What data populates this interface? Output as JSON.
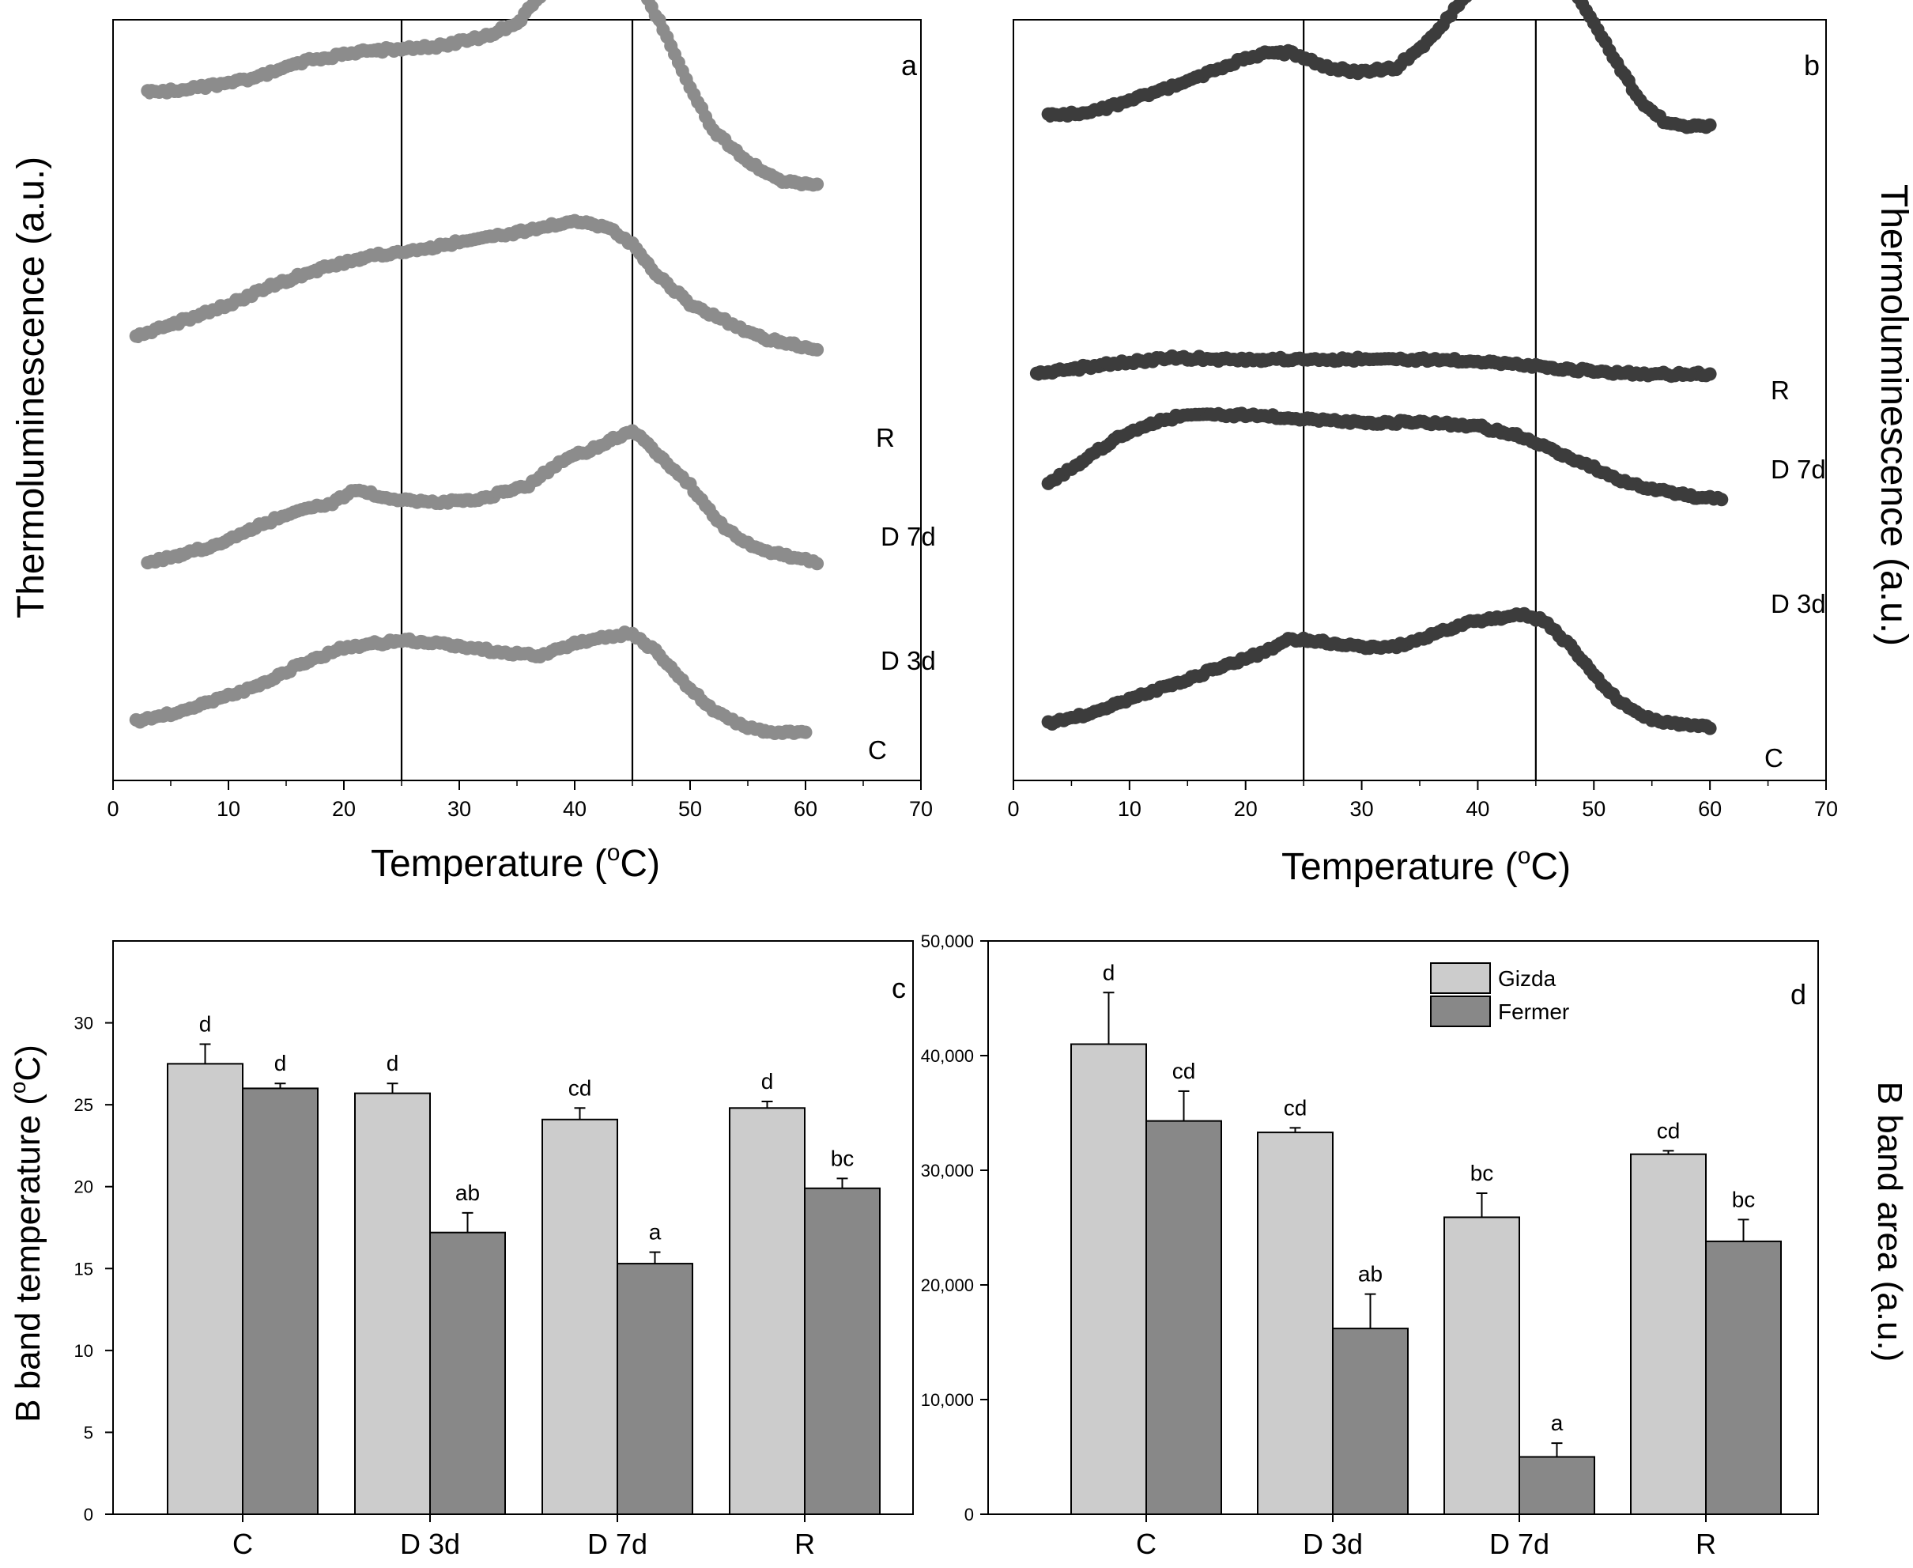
{
  "chart_data": [
    {
      "panel": "a",
      "type": "line",
      "ylabel": "Thermoluminescence (a.u.)",
      "xlabel_main": "Temperature (",
      "xlabel_deg": "o",
      "xlabel_end": "C)",
      "xlim": [
        0,
        70
      ],
      "x_ticks": [
        "0",
        "10",
        "20",
        "30",
        "40",
        "50",
        "60",
        "70"
      ],
      "color": "#8c8c8c",
      "vlines": [
        25,
        45
      ],
      "y_scale": [
        0,
        100
      ],
      "series": [
        {
          "name": "R",
          "points": [
            [
              3,
              62
            ],
            [
              7,
              63
            ],
            [
              12,
              65
            ],
            [
              17,
              69
            ],
            [
              22,
              71
            ],
            [
              25,
              71.5
            ],
            [
              28,
              72
            ],
            [
              32,
              74
            ],
            [
              35,
              77
            ],
            [
              38,
              86
            ],
            [
              40,
              96
            ],
            [
              42,
              97
            ],
            [
              44,
              93
            ],
            [
              46,
              84
            ],
            [
              48,
              74
            ],
            [
              50,
              63
            ],
            [
              52,
              54
            ],
            [
              55,
              47
            ],
            [
              58,
              43
            ],
            [
              61,
              42
            ]
          ]
        },
        {
          "name": "D 7d",
          "points": [
            [
              2,
              38
            ],
            [
              6,
              42
            ],
            [
              10,
              46
            ],
            [
              14,
              51
            ],
            [
              18,
              55
            ],
            [
              22,
              58
            ],
            [
              25,
              59
            ],
            [
              29,
              61
            ],
            [
              33,
              63
            ],
            [
              37,
              65
            ],
            [
              40,
              67
            ],
            [
              43,
              65
            ],
            [
              45,
              61
            ],
            [
              47,
              54
            ],
            [
              50,
              46
            ],
            [
              53,
              42
            ],
            [
              56,
              38
            ],
            [
              59,
              36
            ],
            [
              61,
              35
            ]
          ]
        },
        {
          "name": "D 3d",
          "points": [
            [
              3,
              22
            ],
            [
              6,
              24
            ],
            [
              9,
              26
            ],
            [
              12,
              30
            ],
            [
              16,
              34
            ],
            [
              19,
              36
            ],
            [
              21,
              39
            ],
            [
              24,
              37
            ],
            [
              28,
              36
            ],
            [
              32,
              37
            ],
            [
              36,
              40
            ],
            [
              39,
              46
            ],
            [
              42,
              49
            ],
            [
              45,
              53
            ],
            [
              47,
              48
            ],
            [
              50,
              40
            ],
            [
              53,
              30
            ],
            [
              56,
              25
            ],
            [
              59,
              23
            ],
            [
              61,
              22
            ]
          ]
        },
        {
          "name": "C",
          "points": [
            [
              2,
              6
            ],
            [
              5,
              8
            ],
            [
              8,
              11
            ],
            [
              12,
              15
            ],
            [
              16,
              21
            ],
            [
              20,
              26
            ],
            [
              25,
              28
            ],
            [
              29,
              27
            ],
            [
              33,
              25
            ],
            [
              37,
              24
            ],
            [
              40,
              27
            ],
            [
              43,
              29
            ],
            [
              45,
              30
            ],
            [
              47,
              25
            ],
            [
              49,
              18
            ],
            [
              52,
              9
            ],
            [
              55,
              4
            ],
            [
              58,
              3
            ],
            [
              60,
              3
            ]
          ]
        }
      ]
    },
    {
      "panel": "b",
      "type": "line",
      "ylabel": "Thermoluminescence (a.u.)",
      "xlabel_main": "Temperature (",
      "xlabel_deg": "o",
      "xlabel_end": "C)",
      "xlim": [
        0,
        70
      ],
      "x_ticks": [
        "0",
        "10",
        "20",
        "30",
        "40",
        "50",
        "60",
        "70"
      ],
      "color": "#3c3c3c",
      "vlines": [
        25,
        45
      ],
      "y_scale": [
        0,
        100
      ],
      "series": [
        {
          "name": "R",
          "points": [
            [
              3,
              55
            ],
            [
              7,
              56
            ],
            [
              11,
              59
            ],
            [
              15,
              62
            ],
            [
              19,
              66
            ],
            [
              22,
              68
            ],
            [
              24,
              68
            ],
            [
              27,
              65
            ],
            [
              30,
              64
            ],
            [
              33,
              65
            ],
            [
              36,
              71
            ],
            [
              39,
              80
            ],
            [
              42,
              87
            ],
            [
              44,
              90
            ],
            [
              46,
              89
            ],
            [
              48,
              82
            ],
            [
              50,
              74
            ],
            [
              52,
              66
            ],
            [
              54,
              58
            ],
            [
              56,
              54
            ],
            [
              58,
              53
            ],
            [
              60,
              53
            ]
          ]
        },
        {
          "name": "D 7d",
          "points": [
            [
              2,
              47
            ],
            [
              5,
              50
            ],
            [
              8,
              53
            ],
            [
              11,
              55
            ],
            [
              14,
              57
            ],
            [
              18,
              56
            ],
            [
              25,
              56
            ],
            [
              35,
              56
            ],
            [
              40,
              55
            ],
            [
              45,
              52
            ],
            [
              48,
              50
            ],
            [
              51,
              48
            ],
            [
              55,
              47
            ],
            [
              58,
              47
            ],
            [
              60,
              47
            ]
          ]
        },
        {
          "name": "D 3d",
          "points": [
            [
              3,
              30
            ],
            [
              6,
              36
            ],
            [
              9,
              42
            ],
            [
              12,
              46
            ],
            [
              15,
              48
            ],
            [
              20,
              48
            ],
            [
              25,
              47
            ],
            [
              30,
              46
            ],
            [
              35,
              46
            ],
            [
              40,
              45
            ],
            [
              44,
              42
            ],
            [
              47,
              38
            ],
            [
              50,
              34
            ],
            [
              53,
              30
            ],
            [
              56,
              28
            ],
            [
              59,
              26
            ],
            [
              61,
              26
            ]
          ]
        },
        {
          "name": "C",
          "points": [
            [
              3,
              3
            ],
            [
              6,
              5
            ],
            [
              9,
              8
            ],
            [
              12,
              11
            ],
            [
              15,
              14
            ],
            [
              18,
              17
            ],
            [
              21,
              20
            ],
            [
              24,
              24
            ],
            [
              27,
              23
            ],
            [
              30,
              22
            ],
            [
              33,
              22
            ],
            [
              36,
              25
            ],
            [
              39,
              28
            ],
            [
              42,
              29
            ],
            [
              44,
              30
            ],
            [
              46,
              28
            ],
            [
              48,
              22
            ],
            [
              50,
              15
            ],
            [
              52,
              9
            ],
            [
              54,
              5
            ],
            [
              56,
              3
            ],
            [
              58,
              3
            ],
            [
              60,
              2
            ]
          ]
        }
      ]
    },
    {
      "panel": "c",
      "type": "bar",
      "ylabel_main": "B band temperature (",
      "ylabel_deg": "o",
      "ylabel_end": "C)",
      "categories": [
        "C",
        "D 3d",
        "D 7d",
        "R"
      ],
      "ylim": [
        0,
        35
      ],
      "y_ticks": [
        "0",
        "5",
        "10",
        "15",
        "20",
        "25",
        "30"
      ],
      "y_tick_values": [
        0,
        5,
        10,
        15,
        20,
        25,
        30
      ],
      "series": [
        {
          "name": "Gizda",
          "color": "#cccccc",
          "values": [
            27.5,
            25.7,
            24.1,
            24.8
          ],
          "errors": [
            1.2,
            0.6,
            0.7,
            0.4
          ],
          "letters": [
            "d",
            "d",
            "cd",
            "d"
          ]
        },
        {
          "name": "Fermer",
          "color": "#888888",
          "values": [
            26.0,
            17.2,
            15.3,
            19.9
          ],
          "errors": [
            0.3,
            1.2,
            0.7,
            0.6
          ],
          "letters": [
            "d",
            "ab",
            "a",
            "bc"
          ]
        }
      ]
    },
    {
      "panel": "d",
      "type": "bar",
      "ylabel": "B band area (a.u.)",
      "categories": [
        "C",
        "D 3d",
        "D 7d",
        "R"
      ],
      "ylim": [
        0,
        50000
      ],
      "y_ticks": [
        "0",
        "10,000",
        "20,000",
        "30,000",
        "40,000",
        "50,000"
      ],
      "y_tick_values": [
        0,
        10000,
        20000,
        30000,
        40000,
        50000
      ],
      "legend": [
        "Gizda",
        "Fermer"
      ],
      "series": [
        {
          "name": "Gizda",
          "color": "#cccccc",
          "values": [
            41000,
            33300,
            25900,
            31400
          ],
          "errors": [
            4500,
            400,
            2100,
            300
          ],
          "letters": [
            "d",
            "cd",
            "bc",
            "cd"
          ]
        },
        {
          "name": "Fermer",
          "color": "#888888",
          "values": [
            34300,
            16200,
            5000,
            23800
          ],
          "errors": [
            2600,
            3000,
            1200,
            1900
          ],
          "letters": [
            "cd",
            "ab",
            "a",
            "bc"
          ]
        }
      ]
    }
  ]
}
